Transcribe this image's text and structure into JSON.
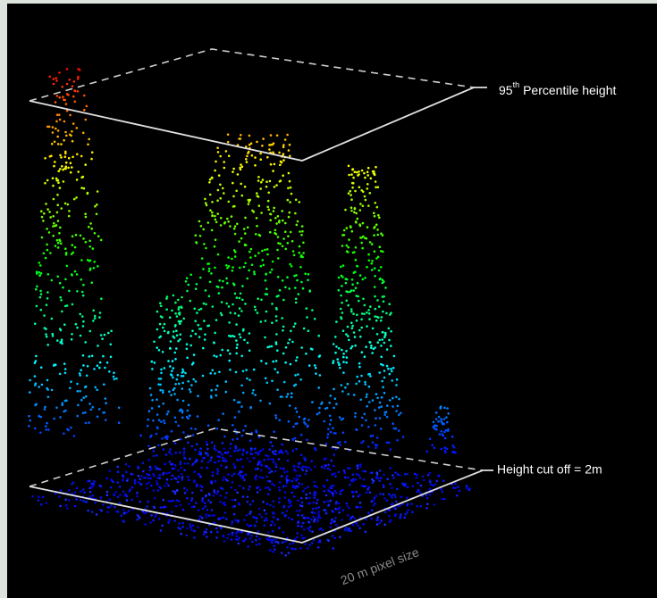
{
  "top_label": {
    "number": "95",
    "superscript": "th",
    "text": "Percentile height"
  },
  "bottom_label": "Height cut off = 2m",
  "pixel_label": "20 m pixel size"
}
